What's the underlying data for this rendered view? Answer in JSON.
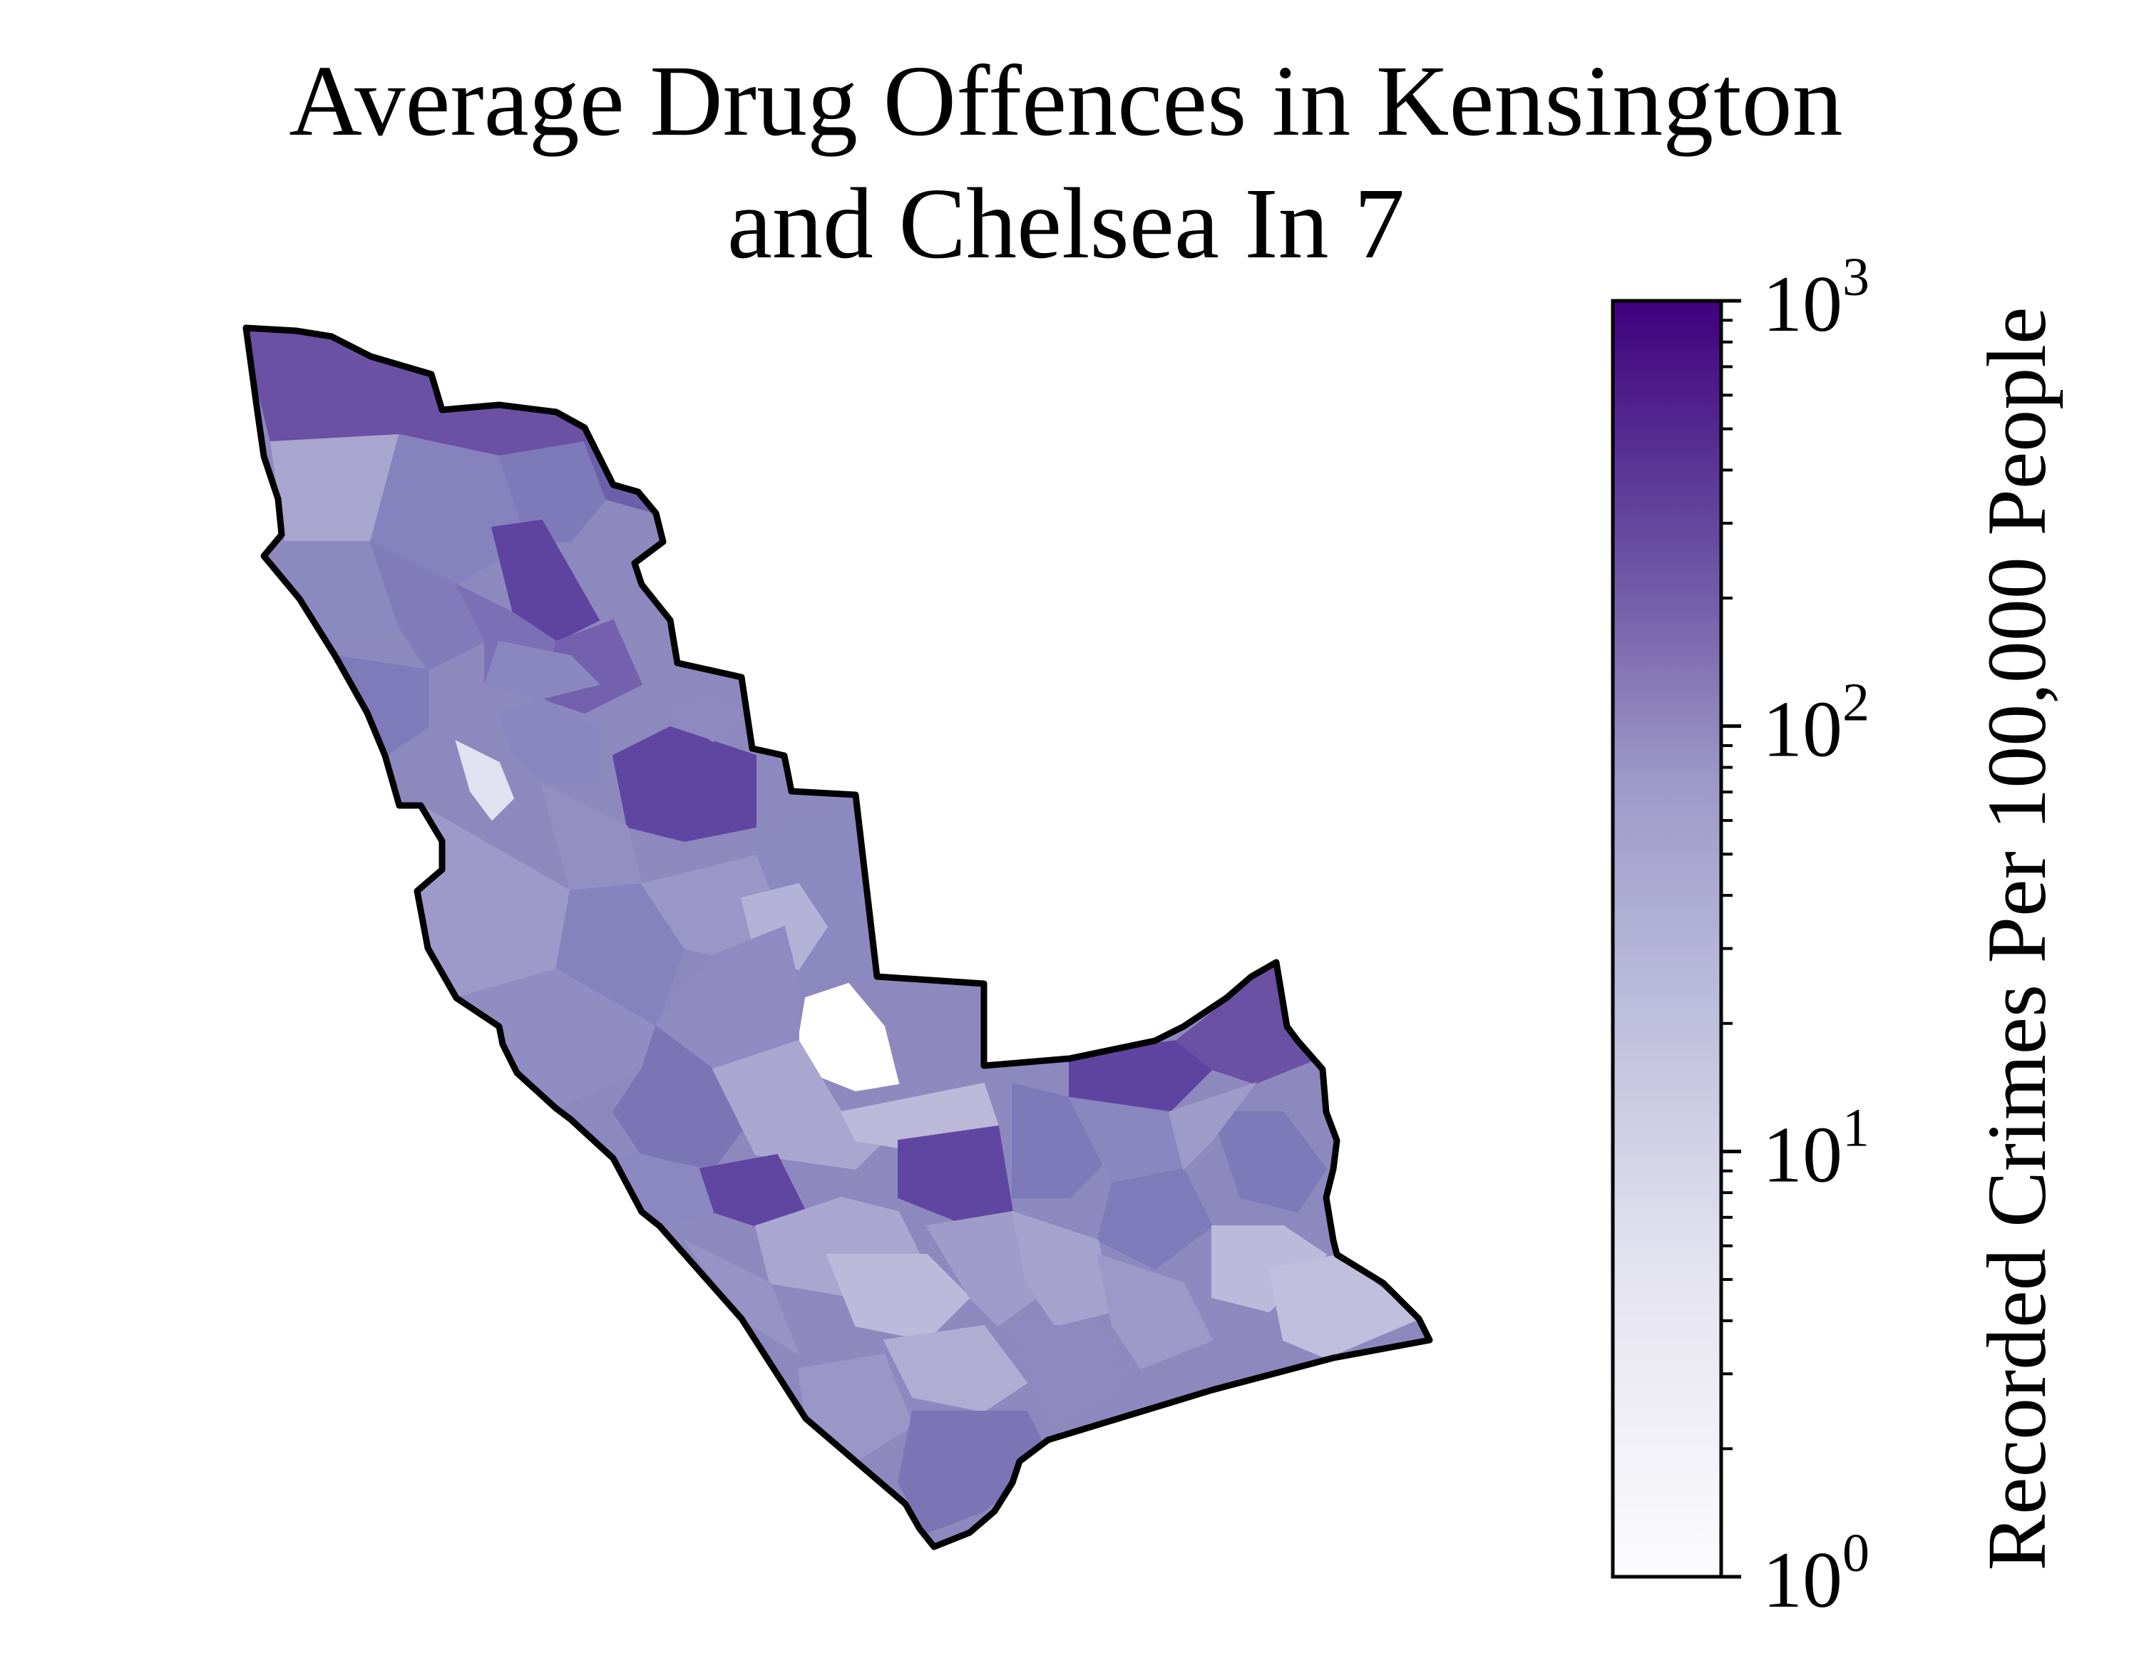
{
  "title": {
    "line1": "Average Drug Offences in Kensington",
    "line2": "and Chelsea In 7"
  },
  "colorbar": {
    "label": "Recorded Crimes Per 100,000 People",
    "scale": "log",
    "range": [
      1,
      1000
    ],
    "ticks": [
      {
        "base": "10",
        "exp": "0",
        "value": 1
      },
      {
        "base": "10",
        "exp": "1",
        "value": 10
      },
      {
        "base": "10",
        "exp": "2",
        "value": 100
      },
      {
        "base": "10",
        "exp": "3",
        "value": 1000
      }
    ],
    "colors": {
      "low": "#fcfbfd",
      "mid": "#9e9ac8",
      "high": "#3f007d"
    }
  }
}
